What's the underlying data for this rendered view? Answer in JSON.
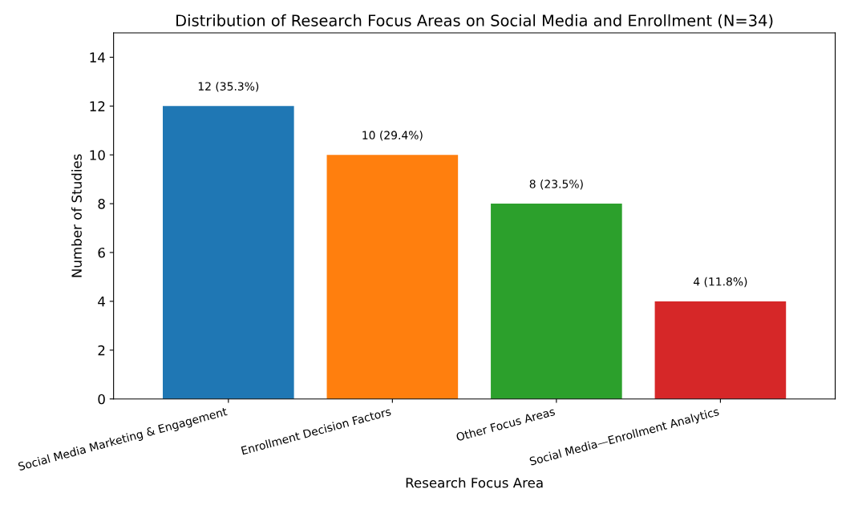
{
  "chart_data": {
    "type": "bar",
    "title": "Distribution of Research Focus Areas on Social Media and Enrollment (N=34)",
    "xlabel": "Research Focus Area",
    "ylabel": "Number of Studies",
    "categories": [
      "Social Media Marketing & Engagement",
      "Enrollment Decision Factors",
      "Other Focus Areas",
      "Social Media—Enrollment Analytics"
    ],
    "values": [
      12,
      10,
      8,
      4
    ],
    "colors": [
      "#1f77b4",
      "#ff7f0e",
      "#2ca02c",
      "#d62728"
    ],
    "value_labels": [
      "12 (35.3%)",
      "10 (29.4%)",
      "8 (23.5%)",
      "4 (11.8%)"
    ],
    "ylim": [
      0,
      15
    ],
    "yticks": [
      0,
      2,
      4,
      6,
      8,
      10,
      12,
      14
    ],
    "grid": false,
    "legend": false
  }
}
